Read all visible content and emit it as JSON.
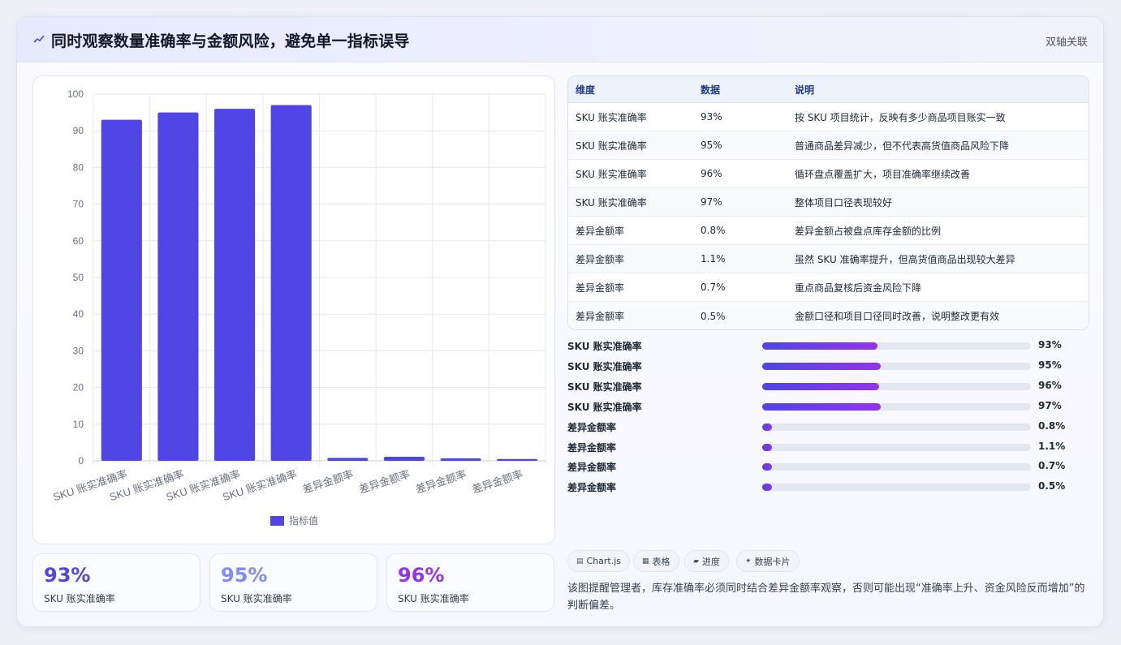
{
  "header": {
    "title": "同时观察数量准确率与金额风险，避免单一指标误导",
    "tag": "双轴关联",
    "icon": "trend-line-icon"
  },
  "chart_data": {
    "type": "bar",
    "categories": [
      "SKU 账实准确率",
      "SKU 账实准确率",
      "SKU 账实准确率",
      "SKU 账实准确率",
      "差异金额率",
      "差异金额率",
      "差异金额率",
      "差异金额率"
    ],
    "series": [
      {
        "name": "指标值",
        "values": [
          93,
          95,
          96,
          97,
          0.8,
          1.1,
          0.7,
          0.5
        ],
        "color": "#4f46e5"
      }
    ],
    "ylim": [
      0,
      100
    ],
    "yticks": [
      0,
      10,
      20,
      30,
      40,
      50,
      60,
      70,
      80,
      90,
      100
    ],
    "grid": true,
    "legend": "bottom"
  },
  "stats": [
    {
      "value": "93%",
      "label": "SKU 账实准确率",
      "color": "#4f46e5"
    },
    {
      "value": "95%",
      "label": "SKU 账实准确率",
      "color": "#818cf8"
    },
    {
      "value": "96%",
      "label": "SKU 账实准确率",
      "color": "#9333ea"
    }
  ],
  "table": {
    "headers": [
      "维度",
      "数据",
      "说明"
    ],
    "rows": [
      [
        "SKU 账实准确率",
        "93%",
        "按 SKU 项目统计，反映有多少商品项目账实一致"
      ],
      [
        "SKU 账实准确率",
        "95%",
        "普通商品差异减少，但不代表高货值商品风险下降"
      ],
      [
        "SKU 账实准确率",
        "96%",
        "循环盘点覆盖扩大，项目准确率继续改善"
      ],
      [
        "SKU 账实准确率",
        "97%",
        "整体项目口径表现较好"
      ],
      [
        "差异金额率",
        "0.8%",
        "差异金额占被盘点库存金额的比例"
      ],
      [
        "差异金额率",
        "1.1%",
        "虽然 SKU 准确率提升，但高货值商品出现较大差异"
      ],
      [
        "差异金额率",
        "0.7%",
        "重点商品复核后资金风险下降"
      ],
      [
        "差异金额率",
        "0.5%",
        "金额口径和项目口径同时改善，说明整改更有效"
      ]
    ]
  },
  "progress": [
    {
      "label": "SKU 账实准确率",
      "value": "93%",
      "fraction": 0.43
    },
    {
      "label": "SKU 账实准确率",
      "value": "95%",
      "fraction": 0.44
    },
    {
      "label": "SKU 账实准确率",
      "value": "96%",
      "fraction": 0.435
    },
    {
      "label": "SKU 账实准确率",
      "value": "97%",
      "fraction": 0.44
    },
    {
      "label": "差异金额率",
      "value": "0.8%",
      "fraction": 0.035
    },
    {
      "label": "差异金额率",
      "value": "1.1%",
      "fraction": 0.035
    },
    {
      "label": "差异金额率",
      "value": "0.7%",
      "fraction": 0.035
    },
    {
      "label": "差异金额率",
      "value": "0.5%",
      "fraction": 0.035
    }
  ],
  "chips": [
    {
      "icon": "chart-icon",
      "glyph": "▤",
      "label": "Chart.js"
    },
    {
      "icon": "table-icon",
      "glyph": "▦",
      "label": "表格"
    },
    {
      "icon": "progress-icon",
      "glyph": "▰",
      "label": "进度"
    },
    {
      "icon": "card-icon",
      "glyph": "✦",
      "label": "数据卡片"
    }
  ],
  "note": "该图提醒管理者，库存准确率必须同时结合差异金额率观察，否则可能出现“准确率上升、资金风险反而增加”的判断偏差。"
}
